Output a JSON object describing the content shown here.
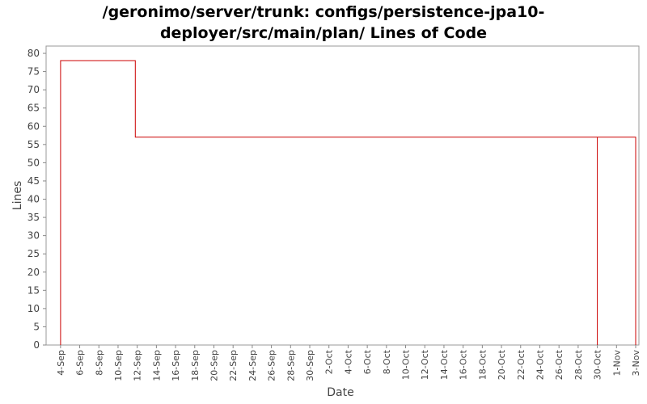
{
  "chart_data": {
    "type": "line",
    "title_line1": "/geronimo/server/trunk: configs/persistence-jpa10-",
    "title_line2": "deployer/src/main/plan/ Lines of Code",
    "xlabel": "Date",
    "ylabel": "Lines",
    "ylim": [
      0,
      82
    ],
    "yticks": [
      0,
      5,
      10,
      15,
      20,
      25,
      30,
      35,
      40,
      45,
      50,
      55,
      60,
      65,
      70,
      75,
      80
    ],
    "x_tick_labels": [
      "4-Sep",
      "6-Sep",
      "8-Sep",
      "10-Sep",
      "12-Sep",
      "14-Sep",
      "16-Sep",
      "18-Sep",
      "20-Sep",
      "22-Sep",
      "24-Sep",
      "26-Sep",
      "28-Sep",
      "30-Sep",
      "2-Oct",
      "4-Oct",
      "6-Oct",
      "8-Oct",
      "10-Oct",
      "12-Oct",
      "14-Oct",
      "16-Oct",
      "18-Oct",
      "20-Oct",
      "22-Oct",
      "24-Oct",
      "26-Oct",
      "28-Oct",
      "30-Oct",
      "1-Nov",
      "3-Nov"
    ],
    "x_tick_dates": [
      "2007-09-04",
      "2007-09-06",
      "2007-09-08",
      "2007-09-10",
      "2007-09-12",
      "2007-09-14",
      "2007-09-16",
      "2007-09-18",
      "2007-09-20",
      "2007-09-22",
      "2007-09-24",
      "2007-09-26",
      "2007-09-28",
      "2007-09-30",
      "2007-10-02",
      "2007-10-04",
      "2007-10-06",
      "2007-10-08",
      "2007-10-10",
      "2007-10-12",
      "2007-10-14",
      "2007-10-16",
      "2007-10-18",
      "2007-10-20",
      "2007-10-22",
      "2007-10-24",
      "2007-10-26",
      "2007-10-28",
      "2007-10-30",
      "2007-11-01",
      "2007-11-03"
    ],
    "x_range": [
      "2007-09-03",
      "2007-11-03"
    ],
    "series": [
      {
        "color": "#cc0000",
        "step": true,
        "points": [
          {
            "x": "2007-09-04",
            "y": 0
          },
          {
            "x": "2007-09-04",
            "y": 78
          },
          {
            "x": "2007-09-11.8",
            "y": 78
          },
          {
            "x": "2007-09-11.8",
            "y": 57
          },
          {
            "x": "2007-10-30",
            "y": 57
          },
          {
            "x": "2007-10-30",
            "y": 0
          },
          {
            "x": "2007-10-30",
            "y": 57
          },
          {
            "x": "2007-11-03",
            "y": 57
          },
          {
            "x": "2007-11-03",
            "y": 0
          }
        ]
      }
    ],
    "grid": false,
    "colors": {
      "series": "#cc0000",
      "axis": "#888888",
      "plot_border": "#999999",
      "text": "#444444"
    }
  }
}
